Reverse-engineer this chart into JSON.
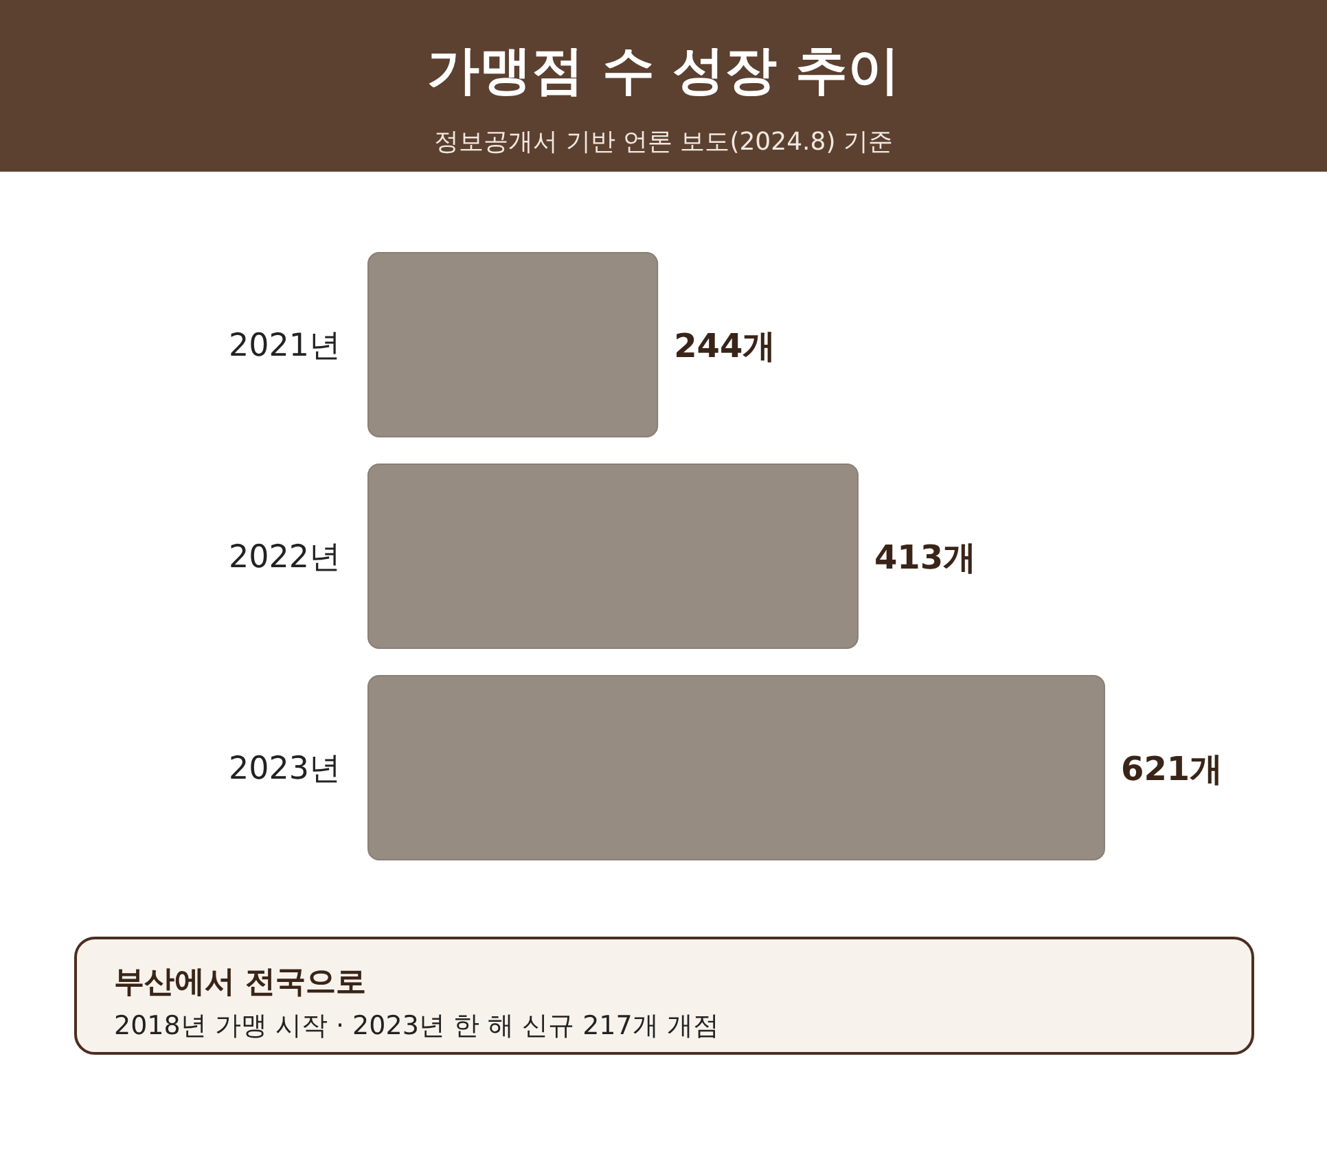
{
  "chart_data": {
    "type": "bar",
    "orientation": "horizontal",
    "title": "가맹점 수 성장 추이",
    "subtitle": "정보공개서 기반 언론 보도(2024.8) 기준",
    "categories": [
      "2021년",
      "2022년",
      "2023년"
    ],
    "values": [
      244,
      413,
      621
    ],
    "value_labels": [
      "244개",
      "413개",
      "621개"
    ],
    "color": "#978c82",
    "annotations": [
      "부산에서 전국으로",
      "2018년 가맹 시작 · 2023년 한 해 신규 217개 개점"
    ]
  }
}
